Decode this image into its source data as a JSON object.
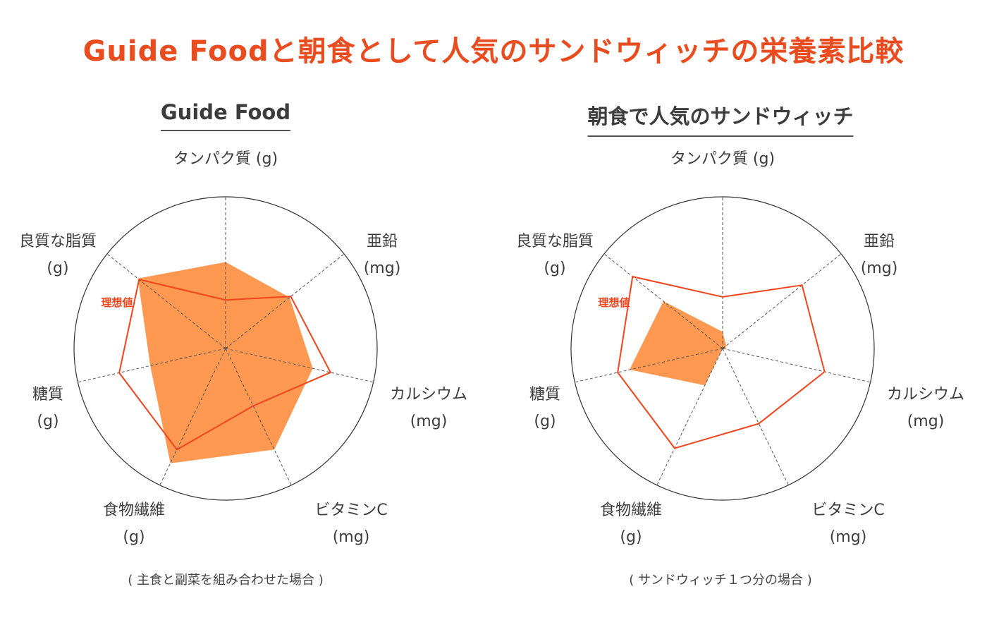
{
  "title": "Guide Foodと朝食として人気のサンドウィッチの栄養素比較",
  "colors": {
    "accent": "#e84c1f",
    "fill": "#ff9247",
    "ideal_line": "#f0441c",
    "axis": "#333333",
    "text": "#3c3c3c"
  },
  "chart_data": [
    {
      "type": "radar",
      "title": "Guide Food",
      "caption": "( 主食と副菜を組み合わせた場合 )",
      "axes": [
        {
          "name": "タンパク質",
          "unit": "(g)"
        },
        {
          "name": "亜鉛",
          "unit": "(mg)"
        },
        {
          "name": "カルシウム",
          "unit": "(mg)"
        },
        {
          "name": "ビタミンC",
          "unit": "(mg)"
        },
        {
          "name": "食物繊維",
          "unit": "(g)"
        },
        {
          "name": "糖質",
          "unit": "(g)"
        },
        {
          "name": "良質な脂質",
          "unit": "(g)"
        }
      ],
      "ideal_label": "理想値",
      "series": [
        {
          "name": "理想値",
          "style": "outline",
          "values": [
            0.32,
            0.55,
            0.71,
            0.42,
            0.74,
            0.72,
            0.73
          ]
        },
        {
          "style": "filled",
          "values": [
            0.57,
            0.54,
            0.59,
            0.74,
            0.84,
            0.51,
            0.74
          ]
        }
      ]
    },
    {
      "type": "radar",
      "title": "朝食で人気のサンドウィッチ",
      "caption": "( サンドウィッチ１つ分の場合 )",
      "axes": [
        {
          "name": "タンパク質",
          "unit": "(g)"
        },
        {
          "name": "亜鉛",
          "unit": "(mg)"
        },
        {
          "name": "カルシウム",
          "unit": "(mg)"
        },
        {
          "name": "ビタミンC",
          "unit": "(mg)"
        },
        {
          "name": "食物繊維",
          "unit": "(g)"
        },
        {
          "name": "糖質",
          "unit": "(g)"
        },
        {
          "name": "良質な脂質",
          "unit": "(g)"
        }
      ],
      "ideal_label": "理想値",
      "series": [
        {
          "name": "理想値",
          "style": "outline",
          "values": [
            0.34,
            0.67,
            0.69,
            0.55,
            0.73,
            0.71,
            0.76
          ]
        },
        {
          "style": "filled",
          "values": [
            0.11,
            0.03,
            0.02,
            0.0,
            0.27,
            0.63,
            0.5
          ]
        }
      ]
    }
  ]
}
